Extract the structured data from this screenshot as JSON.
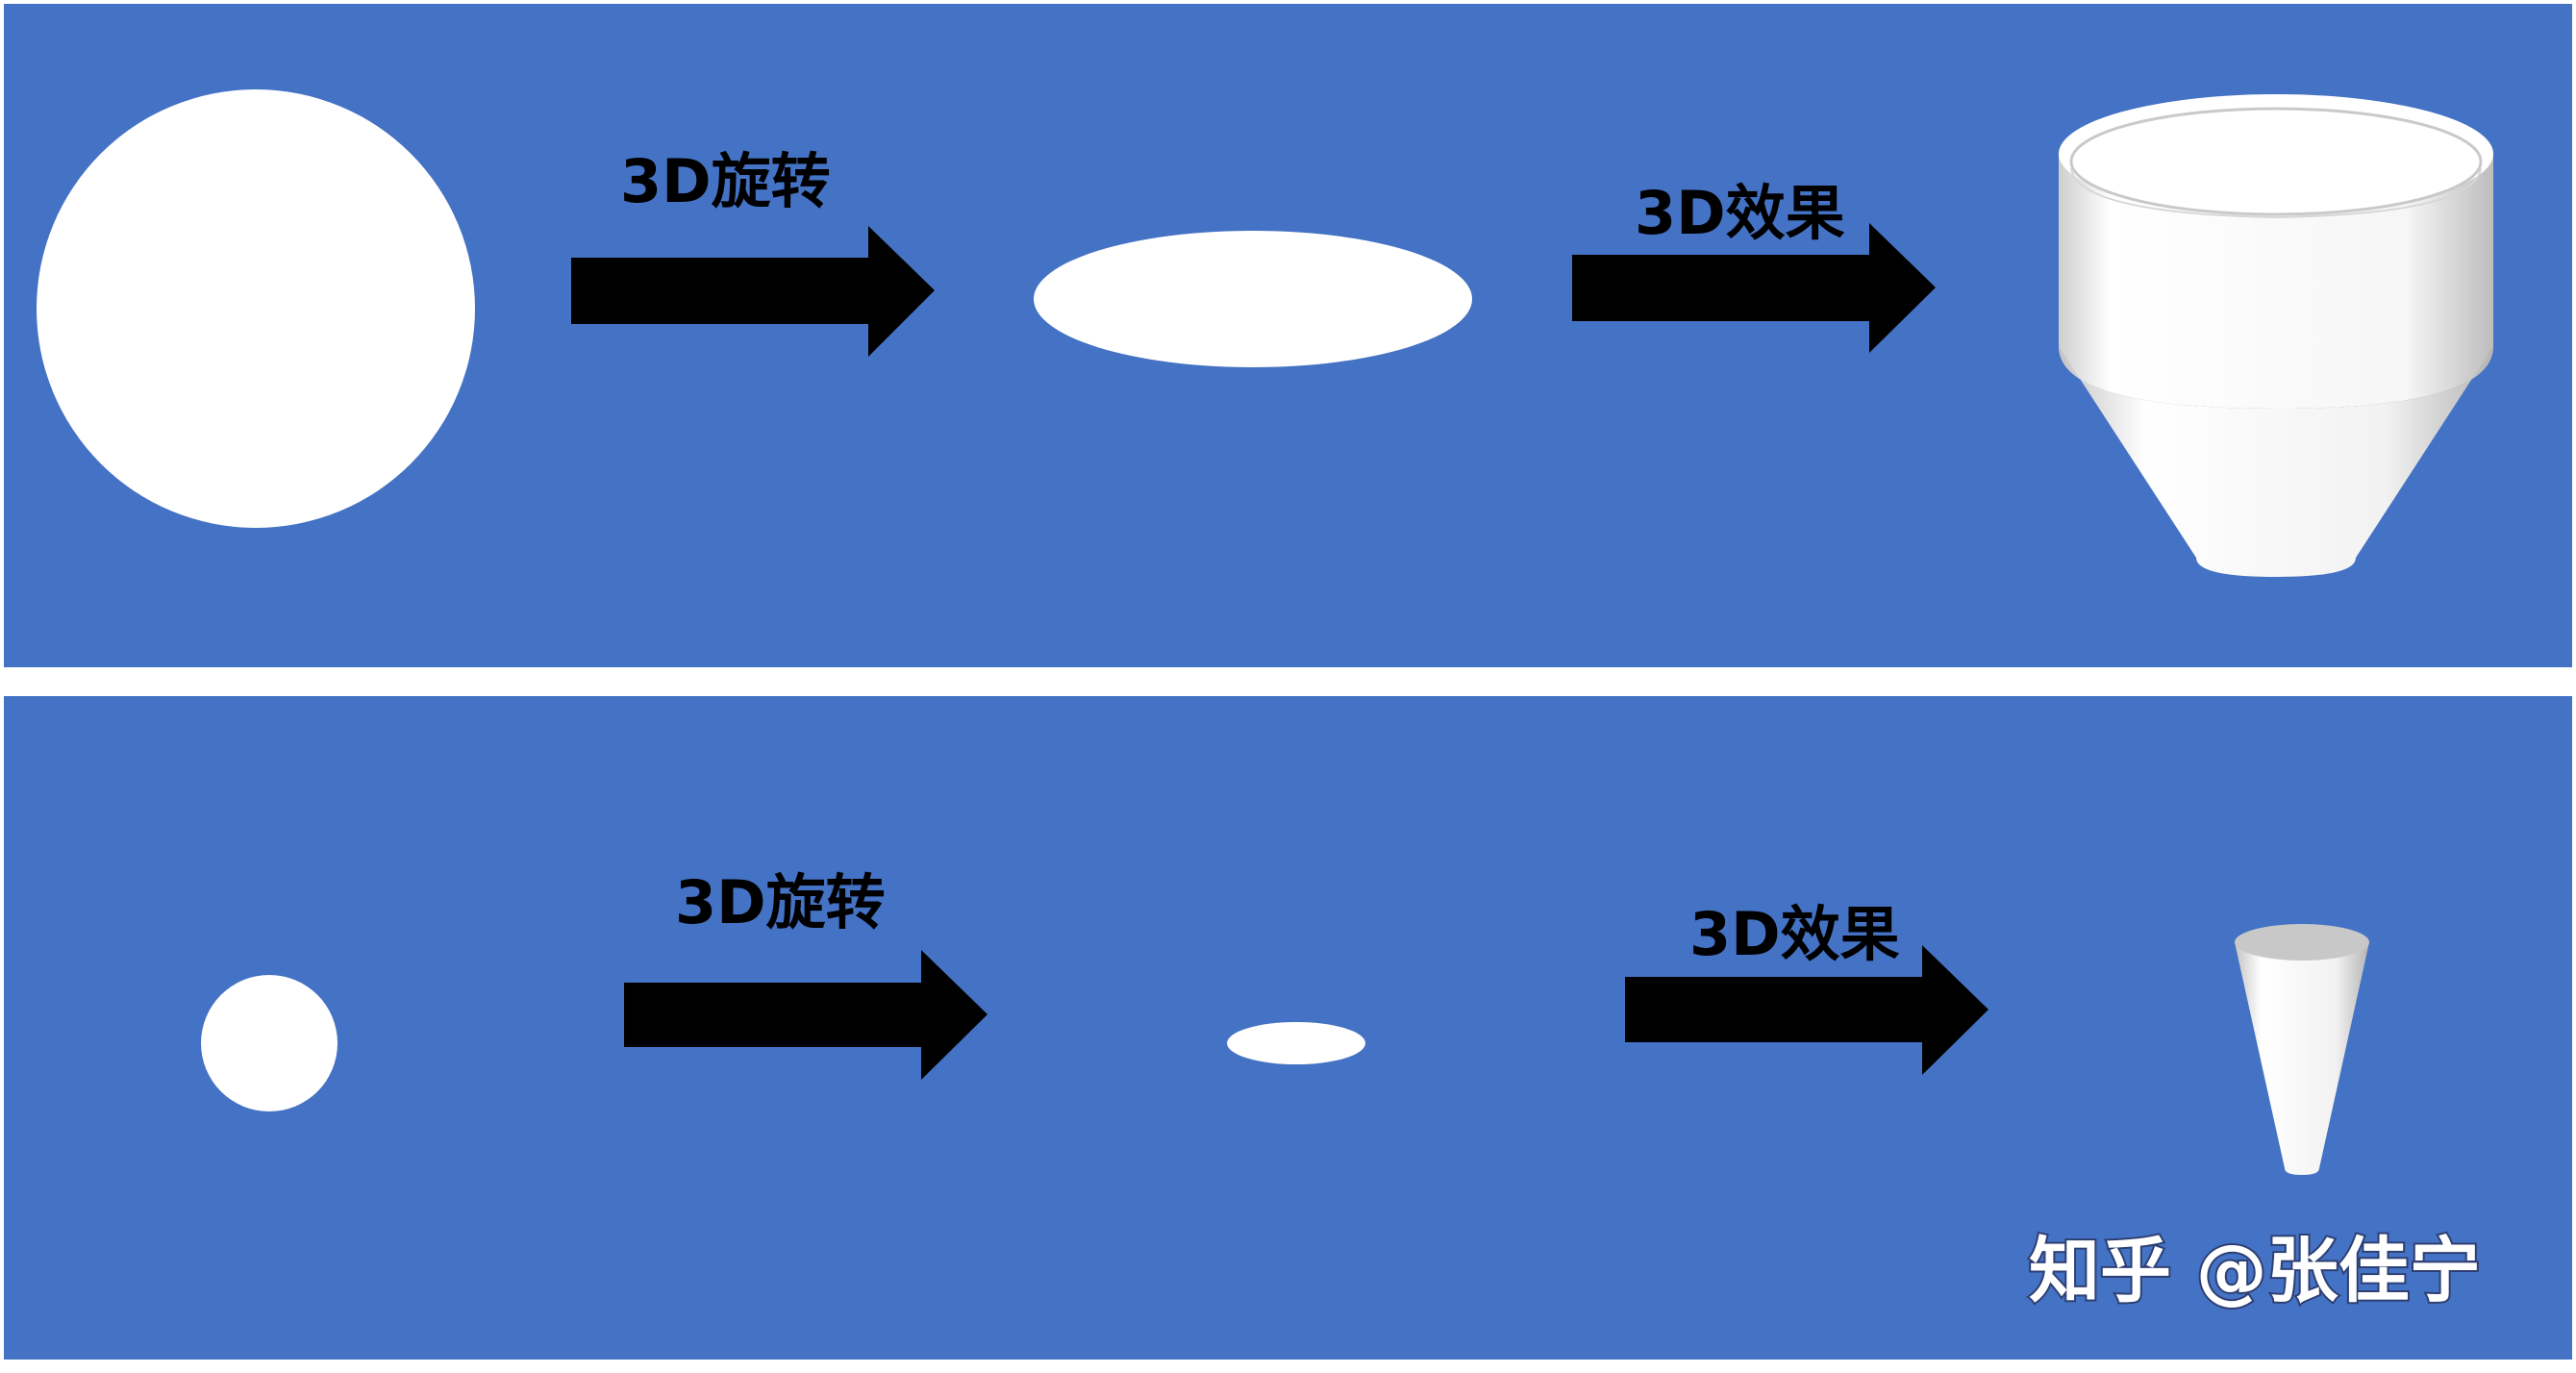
{
  "colors": {
    "panel_background": "#4472C4",
    "page_background": "#ffffff",
    "shape_fill": "#ffffff",
    "arrow_fill": "#000000",
    "label_color": "#000000",
    "watermark_color": "#ffffff"
  },
  "panels": [
    {
      "source_shape": "circle",
      "step1_label": "3D旋转",
      "intermediate_shape": "ellipse",
      "step2_label": "3D效果",
      "result_shape": "funnel-3d"
    },
    {
      "source_shape": "circle",
      "step1_label": "3D旋转",
      "intermediate_shape": "ellipse",
      "step2_label": "3D效果",
      "result_shape": "cone-3d"
    }
  ],
  "watermark": "知乎 @张佳宁"
}
